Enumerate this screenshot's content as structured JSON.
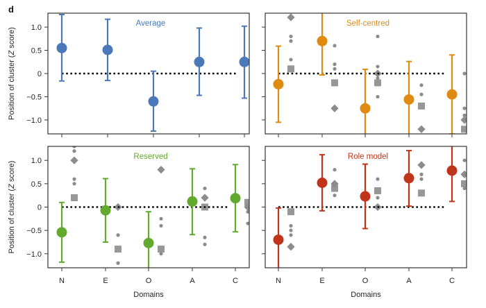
{
  "figure": {
    "panel_letter": "d"
  },
  "chart_data": {
    "type": "scatter",
    "subtype": "point-with-errorbars-multi-panel",
    "panel_letter": "d",
    "shared": {
      "categories": [
        "N",
        "E",
        "O",
        "A",
        "C"
      ],
      "xlabel": "Domains",
      "ylabel_prefix": "Position of cluster (",
      "ylabel_italic": "Z",
      "ylabel_suffix": " score)",
      "ylim": [
        -1.3,
        1.3
      ],
      "yticks": [
        1.0,
        0.5,
        0,
        -0.5,
        -1.0
      ],
      "ytick_labels": [
        "1.0",
        "0.5",
        "0",
        "−0.5",
        "−1.0"
      ],
      "reference_line": 0,
      "reference_line_style": "dotted",
      "grid": false
    },
    "panels": [
      {
        "title": "Average",
        "color": "#4a78b8",
        "means": [
          0.55,
          0.51,
          -0.6,
          0.25,
          0.25
        ],
        "lower": [
          -0.16,
          -0.15,
          -1.24,
          -0.47,
          -0.53
        ],
        "upper": [
          1.27,
          1.17,
          0.05,
          0.98,
          1.02
        ],
        "others": []
      },
      {
        "title": "Self-centred",
        "color": "#e08a12",
        "means": [
          -0.23,
          0.7,
          -0.75,
          -0.56,
          -0.45
        ],
        "lower": [
          -1.05,
          -0.03,
          -1.35,
          -1.35,
          -1.3
        ],
        "upper": [
          0.59,
          1.35,
          0.09,
          0.26,
          0.4
        ],
        "others": [
          {
            "cat": 0,
            "shape": "diamond",
            "y": 1.21
          },
          {
            "cat": 0,
            "shape": "dot",
            "y": 0.8
          },
          {
            "cat": 0,
            "shape": "dot",
            "y": 0.7
          },
          {
            "cat": 0,
            "shape": "dot",
            "y": 0.3
          },
          {
            "cat": 0,
            "shape": "square",
            "y": 0.1
          },
          {
            "cat": 1,
            "shape": "dot",
            "y": 0.6
          },
          {
            "cat": 1,
            "shape": "dot",
            "y": 0.2
          },
          {
            "cat": 1,
            "shape": "dot",
            "y": 0.1
          },
          {
            "cat": 1,
            "shape": "square",
            "y": -0.2
          },
          {
            "cat": 1,
            "shape": "diamond",
            "y": -0.75
          },
          {
            "cat": 2,
            "shape": "dot",
            "y": 0.8
          },
          {
            "cat": 2,
            "shape": "dot",
            "y": 0.15
          },
          {
            "cat": 2,
            "shape": "diamond",
            "y": 0.0
          },
          {
            "cat": 2,
            "shape": "dot",
            "y": -0.1
          },
          {
            "cat": 2,
            "shape": "square",
            "y": -0.2
          },
          {
            "cat": 2,
            "shape": "dot",
            "y": -0.5
          },
          {
            "cat": 3,
            "shape": "dot",
            "y": -0.25
          },
          {
            "cat": 3,
            "shape": "dot",
            "y": -0.45
          },
          {
            "cat": 3,
            "shape": "square",
            "y": -0.7
          },
          {
            "cat": 3,
            "shape": "diamond",
            "y": -1.2
          },
          {
            "cat": 4,
            "shape": "dot",
            "y": 0.0
          },
          {
            "cat": 4,
            "shape": "dot",
            "y": -0.75
          },
          {
            "cat": 4,
            "shape": "dot",
            "y": -0.9
          },
          {
            "cat": 4,
            "shape": "diamond",
            "y": -1.0
          },
          {
            "cat": 4,
            "shape": "square",
            "y": -1.2
          }
        ]
      },
      {
        "title": "Reserved",
        "color": "#62aa2e",
        "means": [
          -0.54,
          -0.07,
          -0.77,
          0.12,
          0.19
        ],
        "lower": [
          -1.18,
          -0.75,
          -1.35,
          -0.59,
          -0.53
        ],
        "upper": [
          0.1,
          0.61,
          -0.1,
          0.82,
          0.91
        ],
        "others": [
          {
            "cat": 0,
            "shape": "dot",
            "y": 1.3
          },
          {
            "cat": 0,
            "shape": "dot",
            "y": 1.2
          },
          {
            "cat": 0,
            "shape": "diamond",
            "y": 1.0
          },
          {
            "cat": 0,
            "shape": "dot",
            "y": 0.6
          },
          {
            "cat": 0,
            "shape": "dot",
            "y": 0.5
          },
          {
            "cat": 0,
            "shape": "square",
            "y": 0.2
          },
          {
            "cat": 1,
            "shape": "diamond",
            "y": 0.0
          },
          {
            "cat": 1,
            "shape": "dot",
            "y": -0.6
          },
          {
            "cat": 1,
            "shape": "square",
            "y": -0.9
          },
          {
            "cat": 1,
            "shape": "dot",
            "y": -1.2
          },
          {
            "cat": 2,
            "shape": "diamond",
            "y": 0.8
          },
          {
            "cat": 2,
            "shape": "dot",
            "y": -0.25
          },
          {
            "cat": 2,
            "shape": "dot",
            "y": -0.4
          },
          {
            "cat": 2,
            "shape": "square",
            "y": -0.9
          },
          {
            "cat": 2,
            "shape": "dot",
            "y": -1.0
          },
          {
            "cat": 3,
            "shape": "dot",
            "y": 0.4
          },
          {
            "cat": 3,
            "shape": "diamond",
            "y": 0.2
          },
          {
            "cat": 3,
            "shape": "square",
            "y": 0.0
          },
          {
            "cat": 3,
            "shape": "dot",
            "y": -0.65
          },
          {
            "cat": 3,
            "shape": "dot",
            "y": -0.8
          },
          {
            "cat": 4,
            "shape": "square",
            "y": 0.1
          },
          {
            "cat": 4,
            "shape": "diamond",
            "y": 0.0
          },
          {
            "cat": 4,
            "shape": "dot",
            "y": -0.1
          },
          {
            "cat": 4,
            "shape": "dot",
            "y": -0.35
          }
        ]
      },
      {
        "title": "Role model",
        "color": "#c0341a",
        "means": [
          -0.7,
          0.52,
          0.23,
          0.62,
          0.78
        ],
        "lower": [
          -1.35,
          -0.08,
          -0.46,
          0.02,
          0.12
        ],
        "upper": [
          -0.02,
          1.12,
          0.92,
          1.21,
          1.35
        ],
        "others": [
          {
            "cat": 0,
            "shape": "square",
            "y": -0.1
          },
          {
            "cat": 0,
            "shape": "dot",
            "y": -0.4
          },
          {
            "cat": 0,
            "shape": "dot",
            "y": -0.5
          },
          {
            "cat": 0,
            "shape": "dot",
            "y": -0.6
          },
          {
            "cat": 0,
            "shape": "diamond",
            "y": -0.85
          },
          {
            "cat": 1,
            "shape": "dot",
            "y": 0.8
          },
          {
            "cat": 1,
            "shape": "diamond",
            "y": 0.5
          },
          {
            "cat": 1,
            "shape": "square",
            "y": 0.4
          },
          {
            "cat": 1,
            "shape": "dot",
            "y": 0.25
          },
          {
            "cat": 2,
            "shape": "dot",
            "y": 0.6
          },
          {
            "cat": 2,
            "shape": "square",
            "y": 0.35
          },
          {
            "cat": 2,
            "shape": "dot",
            "y": 0.2
          },
          {
            "cat": 2,
            "shape": "diamond",
            "y": 0.0
          },
          {
            "cat": 3,
            "shape": "diamond",
            "y": 0.9
          },
          {
            "cat": 3,
            "shape": "dot",
            "y": 0.7
          },
          {
            "cat": 3,
            "shape": "dot",
            "y": 0.6
          },
          {
            "cat": 3,
            "shape": "square",
            "y": 0.3
          },
          {
            "cat": 4,
            "shape": "dot",
            "y": 1.0
          },
          {
            "cat": 4,
            "shape": "diamond",
            "y": 0.7
          },
          {
            "cat": 4,
            "shape": "square",
            "y": 0.5
          },
          {
            "cat": 4,
            "shape": "dot",
            "y": 0.4
          }
        ]
      }
    ]
  }
}
